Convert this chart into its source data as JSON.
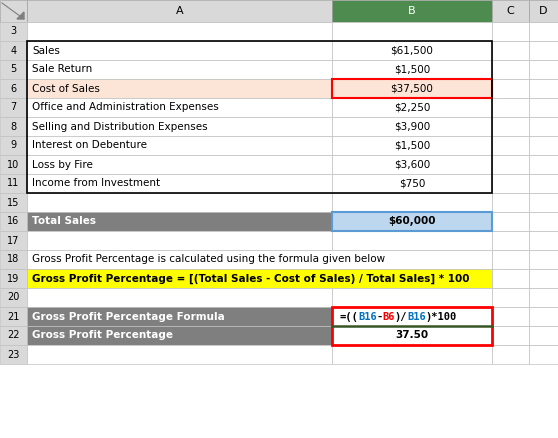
{
  "figsize": [
    5.58,
    4.38
  ],
  "dpi": 100,
  "bg_color": "#ffffff",
  "col_header_bg": "#d9d9d9",
  "rows": [
    {
      "row": 3,
      "label": "",
      "value": "",
      "label_bold": false,
      "label_bg": "#ffffff",
      "value_bg": "#ffffff",
      "label_color": "#000000",
      "value_color": "#000000"
    },
    {
      "row": 4,
      "label": "Sales",
      "value": "$61,500",
      "label_bold": false,
      "label_bg": "#ffffff",
      "value_bg": "#ffffff",
      "label_color": "#000000",
      "value_color": "#000000"
    },
    {
      "row": 5,
      "label": "Sale Return",
      "value": "$1,500",
      "label_bold": false,
      "label_bg": "#ffffff",
      "value_bg": "#ffffff",
      "label_color": "#000000",
      "value_color": "#000000"
    },
    {
      "row": 6,
      "label": "Cost of Sales",
      "value": "$37,500",
      "label_bold": false,
      "label_bg": "#fce4d6",
      "value_bg": "#fce4d6",
      "label_color": "#000000",
      "value_color": "#000000",
      "value_border_red": true
    },
    {
      "row": 7,
      "label": "Office and Administration Expenses",
      "value": "$2,250",
      "label_bold": false,
      "label_bg": "#ffffff",
      "value_bg": "#ffffff",
      "label_color": "#000000",
      "value_color": "#000000"
    },
    {
      "row": 8,
      "label": "Selling and Distribution Expenses",
      "value": "$3,900",
      "label_bold": false,
      "label_bg": "#ffffff",
      "value_bg": "#ffffff",
      "label_color": "#000000",
      "value_color": "#000000"
    },
    {
      "row": 9,
      "label": "Interest on Debenture",
      "value": "$1,500",
      "label_bold": false,
      "label_bg": "#ffffff",
      "value_bg": "#ffffff",
      "label_color": "#000000",
      "value_color": "#000000"
    },
    {
      "row": 10,
      "label": "Loss by Fire",
      "value": "$3,600",
      "label_bold": false,
      "label_bg": "#ffffff",
      "value_bg": "#ffffff",
      "label_color": "#000000",
      "value_color": "#000000"
    },
    {
      "row": 11,
      "label": "Income from Investment",
      "value": "$750",
      "label_bold": false,
      "label_bg": "#ffffff",
      "value_bg": "#ffffff",
      "label_color": "#000000",
      "value_color": "#000000"
    },
    {
      "row": 15,
      "label": "",
      "value": "",
      "label_bold": false,
      "label_bg": "#ffffff",
      "value_bg": "#ffffff",
      "label_color": "#000000",
      "value_color": "#000000"
    },
    {
      "row": 16,
      "label": "Total Sales",
      "value": "$60,000",
      "label_bold": true,
      "label_bg": "#7f7f7f",
      "value_bg": "#bdd7ee",
      "label_color": "#ffffff",
      "value_color": "#000000",
      "value_border_blue": true
    },
    {
      "row": 17,
      "label": "",
      "value": "",
      "label_bold": false,
      "label_bg": "#ffffff",
      "value_bg": "#ffffff",
      "label_color": "#000000",
      "value_color": "#000000"
    },
    {
      "row": 18,
      "label": "Gross Profit Percentage is calculated using the formula given below",
      "value": "",
      "label_bold": false,
      "label_bg": "#ffffff",
      "value_bg": "#ffffff",
      "label_color": "#000000",
      "value_color": "#000000",
      "full_width": true
    },
    {
      "row": 19,
      "label": "Gross Profit Percentage = [(Total Sales - Cost of Sales) / Total Sales] * 100",
      "value": "",
      "label_bold": true,
      "label_bg": "#ffff00",
      "value_bg": "#ffff00",
      "label_color": "#000000",
      "value_color": "#000000",
      "full_width": true
    },
    {
      "row": 20,
      "label": "",
      "value": "",
      "label_bold": false,
      "label_bg": "#ffffff",
      "value_bg": "#ffffff",
      "label_color": "#000000",
      "value_color": "#000000"
    },
    {
      "row": 21,
      "label": "Gross Profit Percentage Formula",
      "value": "",
      "label_bold": true,
      "label_bg": "#7f7f7f",
      "value_bg": "#ffffff",
      "label_color": "#ffffff",
      "value_color": "#000000",
      "formula_colored": true
    },
    {
      "row": 22,
      "label": "Gross Profit Percentage",
      "value": "37.50",
      "label_bold": true,
      "label_bg": "#7f7f7f",
      "value_bg": "#ffffff",
      "label_color": "#ffffff",
      "value_color": "#000000"
    },
    {
      "row": 23,
      "label": "",
      "value": "",
      "label_bold": false,
      "label_bg": "#ffffff",
      "value_bg": "#ffffff",
      "label_color": "#000000",
      "value_color": "#000000"
    }
  ],
  "formula_parts": [
    {
      "text": "=((",
      "color": "#000000"
    },
    {
      "text": "B16",
      "color": "#0070c0"
    },
    {
      "text": "-",
      "color": "#000000"
    },
    {
      "text": "B6",
      "color": "#ff0000"
    },
    {
      "text": ")/",
      "color": "#000000"
    },
    {
      "text": "B16",
      "color": "#0070c0"
    },
    {
      "text": ")*100",
      "color": "#000000"
    }
  ]
}
